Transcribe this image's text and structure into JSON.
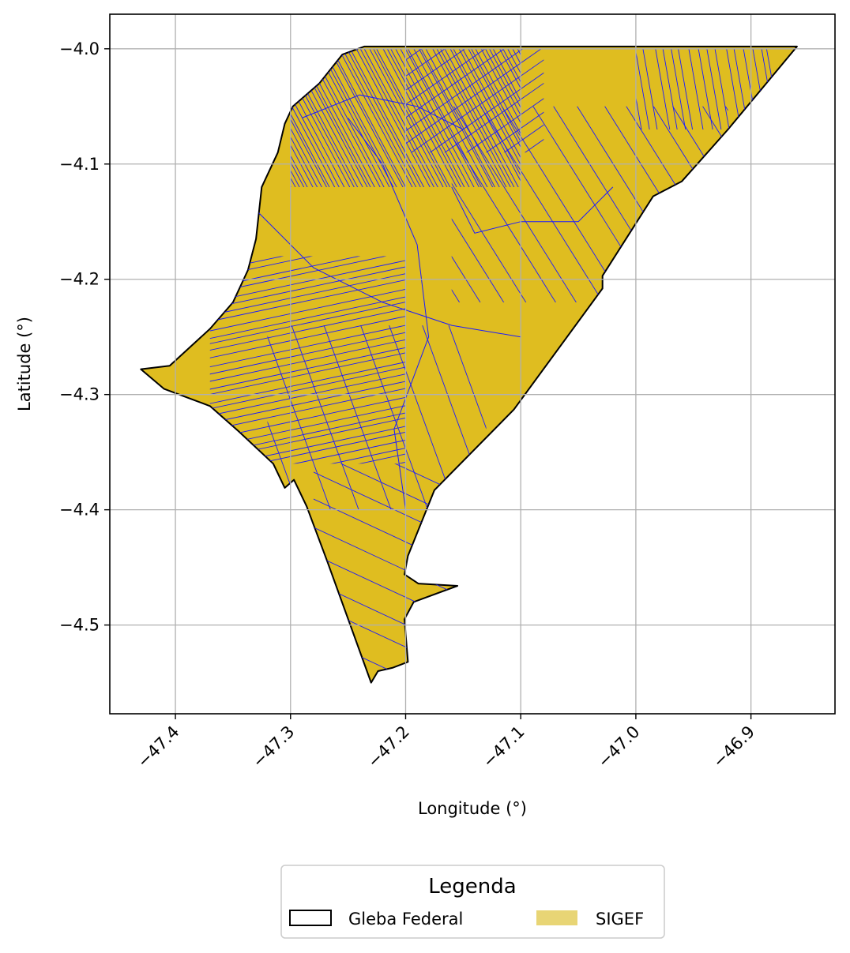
{
  "map": {
    "xlabel": "Longitude (°)",
    "ylabel": "Latitude (°)",
    "xlim": [
      -47.457,
      -46.827
    ],
    "ylim": [
      -4.577,
      -3.97
    ],
    "x_ticks": [
      {
        "value": -47.4,
        "label": "−47.4"
      },
      {
        "value": -47.3,
        "label": "−47.3"
      },
      {
        "value": -47.2,
        "label": "−47.2"
      },
      {
        "value": -47.1,
        "label": "−47.1"
      },
      {
        "value": -47.0,
        "label": "−47.0"
      },
      {
        "value": -46.9,
        "label": "−46.9"
      }
    ],
    "y_ticks": [
      {
        "value": -4.0,
        "label": "−4.0"
      },
      {
        "value": -4.1,
        "label": "−4.1"
      },
      {
        "value": -4.2,
        "label": "−4.2"
      },
      {
        "value": -4.3,
        "label": "−4.3"
      },
      {
        "value": -4.4,
        "label": "−4.4"
      },
      {
        "value": -4.5,
        "label": "−4.5"
      }
    ],
    "grid": true,
    "colors": {
      "gleba_edge": "#000000",
      "sigef_fill": "#dfbd20",
      "parcel_edge": "#1a1aff",
      "grid": "#b0b0b0"
    },
    "gleba_boundary": [
      [
        -47.236,
        -3.998
      ],
      [
        -46.86,
        -3.998
      ],
      [
        -46.92,
        -4.07
      ],
      [
        -46.96,
        -4.115
      ],
      [
        -46.985,
        -4.128
      ],
      [
        -47.029,
        -4.197
      ],
      [
        -47.029,
        -4.208
      ],
      [
        -47.106,
        -4.313
      ],
      [
        -47.175,
        -4.383
      ],
      [
        -47.198,
        -4.44
      ],
      [
        -47.201,
        -4.456
      ],
      [
        -47.189,
        -4.464
      ],
      [
        -47.155,
        -4.466
      ],
      [
        -47.193,
        -4.48
      ],
      [
        -47.201,
        -4.495
      ],
      [
        -47.198,
        -4.532
      ],
      [
        -47.211,
        -4.537
      ],
      [
        -47.224,
        -4.54
      ],
      [
        -47.23,
        -4.55
      ],
      [
        -47.268,
        -4.445
      ],
      [
        -47.286,
        -4.397
      ],
      [
        -47.297,
        -4.374
      ],
      [
        -47.305,
        -4.381
      ],
      [
        -47.315,
        -4.36
      ],
      [
        -47.345,
        -4.332
      ],
      [
        -47.37,
        -4.31
      ],
      [
        -47.41,
        -4.295
      ],
      [
        -47.43,
        -4.278
      ],
      [
        -47.405,
        -4.275
      ],
      [
        -47.37,
        -4.243
      ],
      [
        -47.35,
        -4.22
      ],
      [
        -47.337,
        -4.192
      ],
      [
        -47.33,
        -4.165
      ],
      [
        -47.325,
        -4.12
      ],
      [
        -47.311,
        -4.09
      ],
      [
        -47.305,
        -4.065
      ],
      [
        -47.298,
        -4.05
      ],
      [
        -47.275,
        -4.03
      ],
      [
        -47.255,
        -4.005
      ]
    ],
    "legend": {
      "title": "Legenda",
      "items": [
        {
          "label": "Gleba Federal",
          "style": "outline",
          "color": "#000000"
        },
        {
          "label": "SIGEF",
          "style": "fill",
          "color": "#e8d575"
        }
      ]
    }
  }
}
